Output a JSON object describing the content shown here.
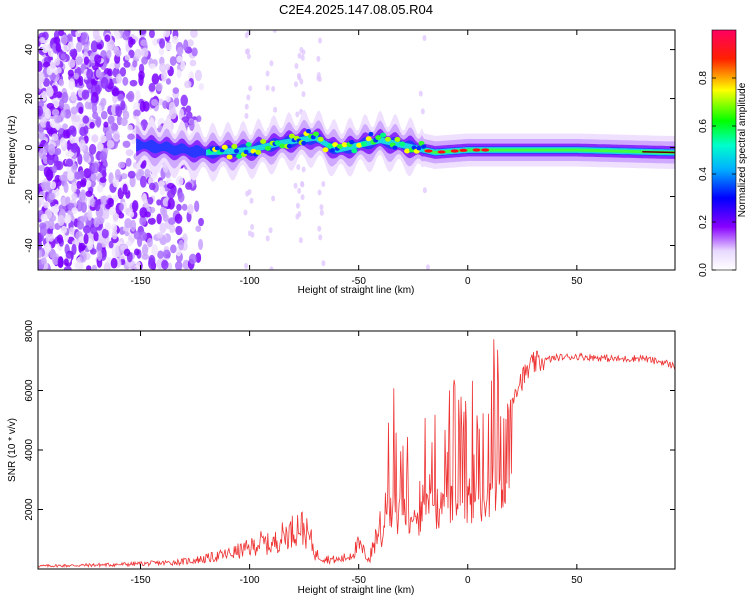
{
  "title": "C2E4.2025.147.08.05.R04",
  "chart_data": [
    {
      "type": "heatmap",
      "xlabel": "Height of straight line (km)",
      "ylabel": "Frequency (Hz)",
      "xlim": [
        -197,
        95
      ],
      "ylim": [
        -50,
        48
      ],
      "xticks": [
        -150,
        -100,
        -50,
        0,
        50
      ],
      "yticks": [
        -40,
        -20,
        0,
        20,
        40
      ],
      "colorbar": {
        "label": "Normalized spectral amplitude",
        "range": [
          0,
          1
        ],
        "ticks": [
          0.0,
          0.2,
          0.4,
          0.6,
          0.8
        ],
        "tick_labels": [
          "0.0",
          "0.2",
          "0.4",
          "0.6",
          "0.8"
        ],
        "colormap": "rainbow (white-purple-blue-cyan-green-yellow-red)"
      },
      "ridge_center_hz": [
        {
          "x": -150,
          "y": 1
        },
        {
          "x": -120,
          "y": -2
        },
        {
          "x": -100,
          "y": -1
        },
        {
          "x": -85,
          "y": 2
        },
        {
          "x": -70,
          "y": 4
        },
        {
          "x": -60,
          "y": -1
        },
        {
          "x": -50,
          "y": 1
        },
        {
          "x": -40,
          "y": 3
        },
        {
          "x": -30,
          "y": 1
        },
        {
          "x": -15,
          "y": -2
        },
        {
          "x": 0,
          "y": -1
        },
        {
          "x": 20,
          "y": -1
        },
        {
          "x": 50,
          "y": -1
        },
        {
          "x": 92,
          "y": -2
        }
      ]
    },
    {
      "type": "line",
      "xlabel": "Height of straight line (km)",
      "ylabel": "SNR (10 * v/v)",
      "xlim": [
        -197,
        95
      ],
      "ylim": [
        0,
        8000
      ],
      "xticks": [
        -150,
        -100,
        -50,
        0,
        50
      ],
      "yticks": [
        2000,
        4000,
        6000,
        8000
      ],
      "series": [
        {
          "color": "#ee3333",
          "x": [
            -197,
            -180,
            -160,
            -140,
            -130,
            -120,
            -110,
            -100,
            -95,
            -90,
            -85,
            -80,
            -77,
            -75,
            -72,
            -70,
            -65,
            -60,
            -55,
            -52,
            -50,
            -47,
            -45,
            -43,
            -40,
            -38,
            -36,
            -34,
            -32,
            -30,
            -28,
            -26,
            -24,
            -22,
            -20,
            -18,
            -16,
            -14,
            -12,
            -10,
            -8,
            -6,
            -4,
            -2,
            0,
            2,
            4,
            6,
            8,
            10,
            12,
            14,
            16,
            18,
            20,
            22,
            25,
            28,
            30,
            35,
            40,
            50,
            60,
            70,
            80,
            85,
            90,
            95
          ],
          "y": [
            100,
            120,
            150,
            200,
            250,
            350,
            500,
            700,
            900,
            800,
            1100,
            1300,
            1500,
            1300,
            1000,
            500,
            350,
            300,
            400,
            600,
            800,
            500,
            300,
            900,
            1500,
            2500,
            3500,
            4200,
            3200,
            4500,
            3800,
            3000,
            3200,
            2800,
            3600,
            4000,
            4400,
            3500,
            4200,
            3800,
            4000,
            4200,
            4000,
            3600,
            3800,
            4300,
            5000,
            4200,
            4500,
            4800,
            5200,
            5000,
            4600,
            5400,
            5800,
            6100,
            6400,
            6700,
            6900,
            7000,
            7100,
            7150,
            7100,
            7050,
            7100,
            7000,
            6950,
            6800
          ]
        }
      ]
    }
  ]
}
